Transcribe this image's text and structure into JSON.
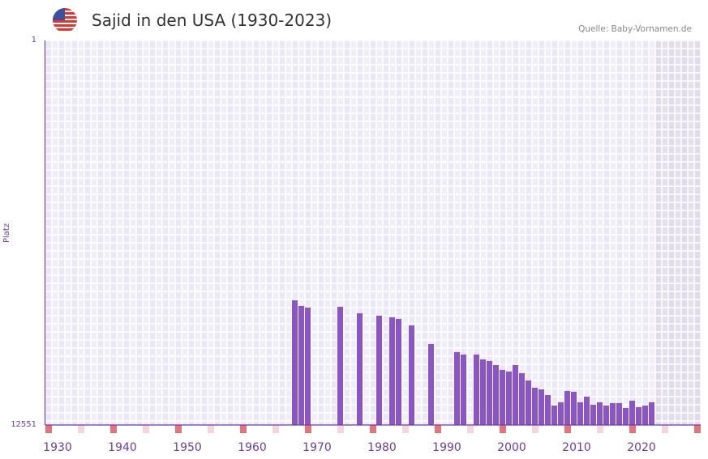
{
  "header": {
    "title": "Sajid in den USA (1930-2023)",
    "source": "Quelle: Baby-Vornamen.de",
    "flag_icon": "us-flag-icon"
  },
  "chart_data": {
    "type": "bar",
    "title": "Sajid in den USA (1930-2023)",
    "ylabel": "Platz",
    "xlabel": "",
    "ylim": [
      1,
      12551
    ],
    "y_inverted": true,
    "yticks": [
      "1",
      "12551"
    ],
    "xticks": [
      1930,
      1940,
      1950,
      1960,
      1970,
      1980,
      1990,
      2000,
      2010,
      2020
    ],
    "xlim": [
      1928,
      2028
    ],
    "grid": true,
    "bar_color": "#8b55c6",
    "years": [
      1966,
      1967,
      1968,
      1973,
      1976,
      1979,
      1981,
      1982,
      1984,
      1987,
      1991,
      1992,
      1994,
      1995,
      1996,
      1997,
      1998,
      1999,
      2000,
      2001,
      2002,
      2003,
      2004,
      2005,
      2006,
      2007,
      2008,
      2009,
      2010,
      2011,
      2012,
      2013,
      2014,
      2015,
      2016,
      2017,
      2018,
      2019,
      2020,
      2021
    ],
    "ranks": [
      8482,
      8666,
      8719,
      8693,
      8904,
      8983,
      9036,
      9089,
      9300,
      9908,
      10172,
      10250,
      10250,
      10410,
      10462,
      10595,
      10753,
      10806,
      10595,
      10858,
      11097,
      11335,
      11388,
      11573,
      11916,
      11810,
      11440,
      11467,
      11810,
      11626,
      11890,
      11810,
      11916,
      11837,
      11837,
      11996,
      11758,
      11969,
      11916,
      11810
    ]
  }
}
